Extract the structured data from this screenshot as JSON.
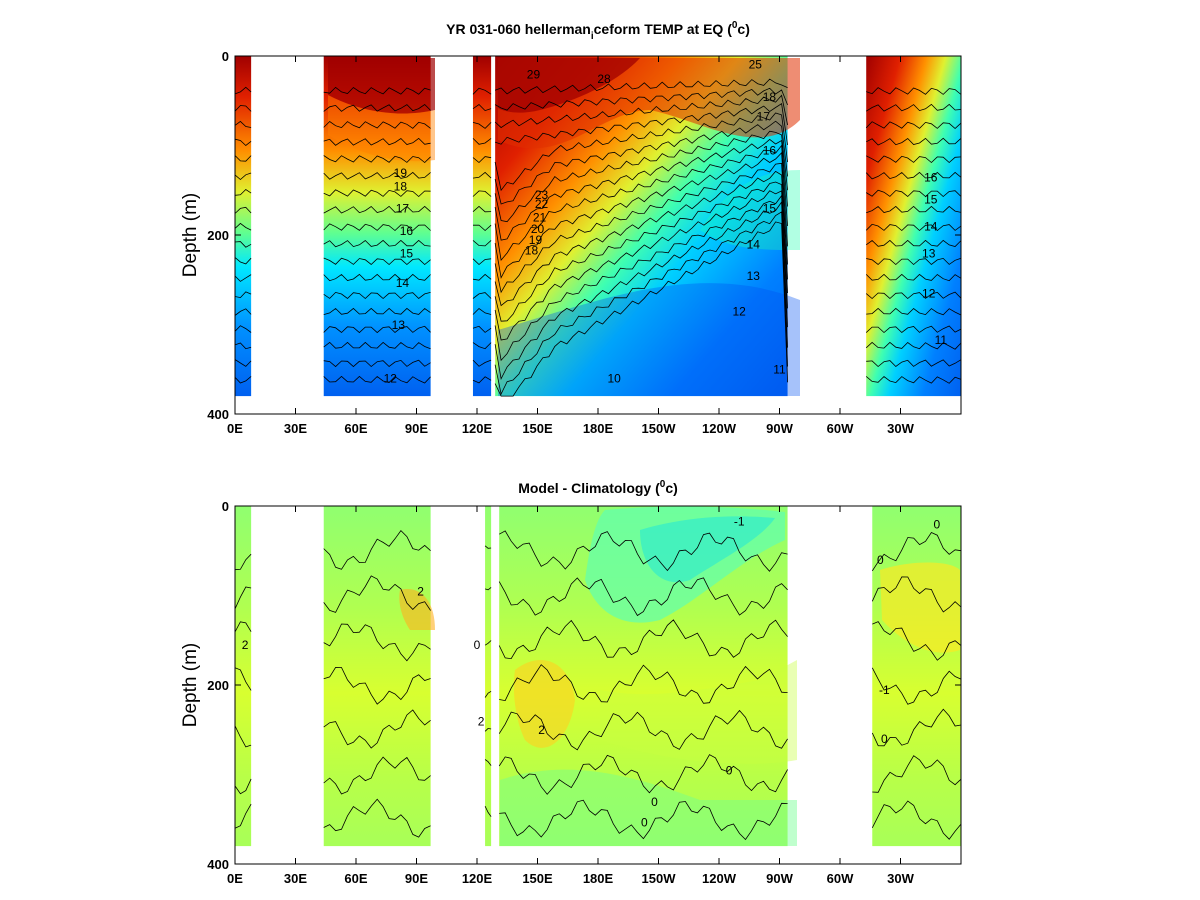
{
  "chart_data": [
    {
      "type": "heatmap",
      "title": "YR 031-060 hellerman_iceform TEMP at EQ (°c)",
      "title_main": "YR 031-060 hellerman",
      "title_sub": "i",
      "title_rest": "ceform TEMP at EQ (",
      "title_sup": "0",
      "title_end": "c)",
      "ylabel": "Depth (m)",
      "ylim": [
        0,
        400
      ],
      "y_reversed": true,
      "yticks": [
        "0",
        "200",
        "400"
      ],
      "ytick_values": [
        0,
        200,
        400
      ],
      "xticks": [
        "0E",
        "30E",
        "60E",
        "90E",
        "120E",
        "150E",
        "180E",
        "150W",
        "120W",
        "90W",
        "60W",
        "30W"
      ],
      "xtick_values": [
        0,
        30,
        60,
        90,
        120,
        150,
        180,
        210,
        240,
        270,
        300,
        330
      ],
      "xlim": [
        0,
        360
      ],
      "colormap": [
        "#0000c8",
        "#0060ff",
        "#00c8ff",
        "#40ffc0",
        "#c0ff40",
        "#ffe000",
        "#ff8000",
        "#e01000",
        "#a00000"
      ],
      "value_range": [
        9,
        30
      ],
      "ocean_segments": [
        {
          "lon_start": 0,
          "lon_end": 8,
          "bottom": 380
        },
        {
          "lon_start": 44,
          "lon_end": 97,
          "bottom": 380
        },
        {
          "lon_start": 118,
          "lon_end": 127,
          "bottom": 380
        },
        {
          "lon_start": 129,
          "lon_end": 274,
          "bottom": 380
        },
        {
          "lon_start": 313,
          "lon_end": 360,
          "bottom": 380
        }
      ],
      "contour_labels": [
        {
          "value": "29",
          "lon": 148,
          "depth": 25
        },
        {
          "value": "28",
          "lon": 183,
          "depth": 30
        },
        {
          "value": "25",
          "lon": 258,
          "depth": 14
        },
        {
          "value": "18",
          "lon": 265,
          "depth": 50
        },
        {
          "value": "17",
          "lon": 262,
          "depth": 72
        },
        {
          "value": "16",
          "lon": 265,
          "depth": 110
        },
        {
          "value": "15",
          "lon": 265,
          "depth": 175
        },
        {
          "value": "14",
          "lon": 257,
          "depth": 215
        },
        {
          "value": "13",
          "lon": 257,
          "depth": 250
        },
        {
          "value": "12",
          "lon": 250,
          "depth": 290
        },
        {
          "value": "11",
          "lon": 270,
          "depth": 355
        },
        {
          "value": "10",
          "lon": 188,
          "depth": 365
        },
        {
          "value": "23",
          "lon": 152,
          "depth": 160
        },
        {
          "value": "22",
          "lon": 152,
          "depth": 170
        },
        {
          "value": "21",
          "lon": 151,
          "depth": 185
        },
        {
          "value": "20",
          "lon": 150,
          "depth": 198
        },
        {
          "value": "19",
          "lon": 149,
          "depth": 210
        },
        {
          "value": "18",
          "lon": 147,
          "depth": 222
        },
        {
          "value": "19",
          "lon": 82,
          "depth": 135
        },
        {
          "value": "18",
          "lon": 82,
          "depth": 150
        },
        {
          "value": "17",
          "lon": 83,
          "depth": 175
        },
        {
          "value": "16",
          "lon": 85,
          "depth": 200
        },
        {
          "value": "15",
          "lon": 85,
          "depth": 225
        },
        {
          "value": "14",
          "lon": 83,
          "depth": 258
        },
        {
          "value": "13",
          "lon": 81,
          "depth": 305
        },
        {
          "value": "12",
          "lon": 77,
          "depth": 365
        },
        {
          "value": "16",
          "lon": 345,
          "depth": 140
        },
        {
          "value": "15",
          "lon": 345,
          "depth": 165
        },
        {
          "value": "14",
          "lon": 345,
          "depth": 195
        },
        {
          "value": "13",
          "lon": 344,
          "depth": 225
        },
        {
          "value": "12",
          "lon": 344,
          "depth": 270
        },
        {
          "value": "11",
          "lon": 350,
          "depth": 322
        }
      ]
    },
    {
      "type": "heatmap",
      "title": "Model - Climatology (°c)",
      "title_main": "Model - Climatology (",
      "title_sup": "0",
      "title_end": "c)",
      "ylabel": "Depth (m)",
      "ylim": [
        0,
        400
      ],
      "y_reversed": true,
      "yticks": [
        "0",
        "200",
        "400"
      ],
      "ytick_values": [
        0,
        200,
        400
      ],
      "xticks": [
        "0E",
        "30E",
        "60E",
        "90E",
        "120E",
        "150E",
        "180E",
        "150W",
        "120W",
        "90W",
        "60W",
        "30W"
      ],
      "xtick_values": [
        0,
        30,
        60,
        90,
        120,
        150,
        180,
        210,
        240,
        270,
        300,
        330
      ],
      "xlim": [
        0,
        360
      ],
      "colormap": [
        "#00c8ff",
        "#40ffc0",
        "#80ff90",
        "#c0ff40",
        "#f0ff20",
        "#ffe000"
      ],
      "value_range": [
        -3,
        2
      ],
      "ocean_segments": [
        {
          "lon_start": 0,
          "lon_end": 8,
          "bottom": 380
        },
        {
          "lon_start": 44,
          "lon_end": 97,
          "bottom": 380
        },
        {
          "lon_start": 124,
          "lon_end": 127,
          "bottom": 380
        },
        {
          "lon_start": 131,
          "lon_end": 274,
          "bottom": 380
        },
        {
          "lon_start": 316,
          "lon_end": 360,
          "bottom": 380
        }
      ],
      "contour_labels": [
        {
          "value": "-1",
          "lon": 250,
          "depth": 22
        },
        {
          "value": "2",
          "lon": 92,
          "depth": 100
        },
        {
          "value": "2",
          "lon": 5,
          "depth": 160
        },
        {
          "value": "0",
          "lon": 348,
          "depth": 25
        },
        {
          "value": "0",
          "lon": 320,
          "depth": 65
        },
        {
          "value": "-1",
          "lon": 322,
          "depth": 210
        },
        {
          "value": "0",
          "lon": 322,
          "depth": 265
        },
        {
          "value": "0",
          "lon": 245,
          "depth": 300
        },
        {
          "value": "0",
          "lon": 208,
          "depth": 335
        },
        {
          "value": "0",
          "lon": 203,
          "depth": 358
        },
        {
          "value": "2",
          "lon": 152,
          "depth": 255
        },
        {
          "value": "0",
          "lon": 120,
          "depth": 160
        },
        {
          "value": "2",
          "lon": 122,
          "depth": 245
        }
      ]
    }
  ]
}
